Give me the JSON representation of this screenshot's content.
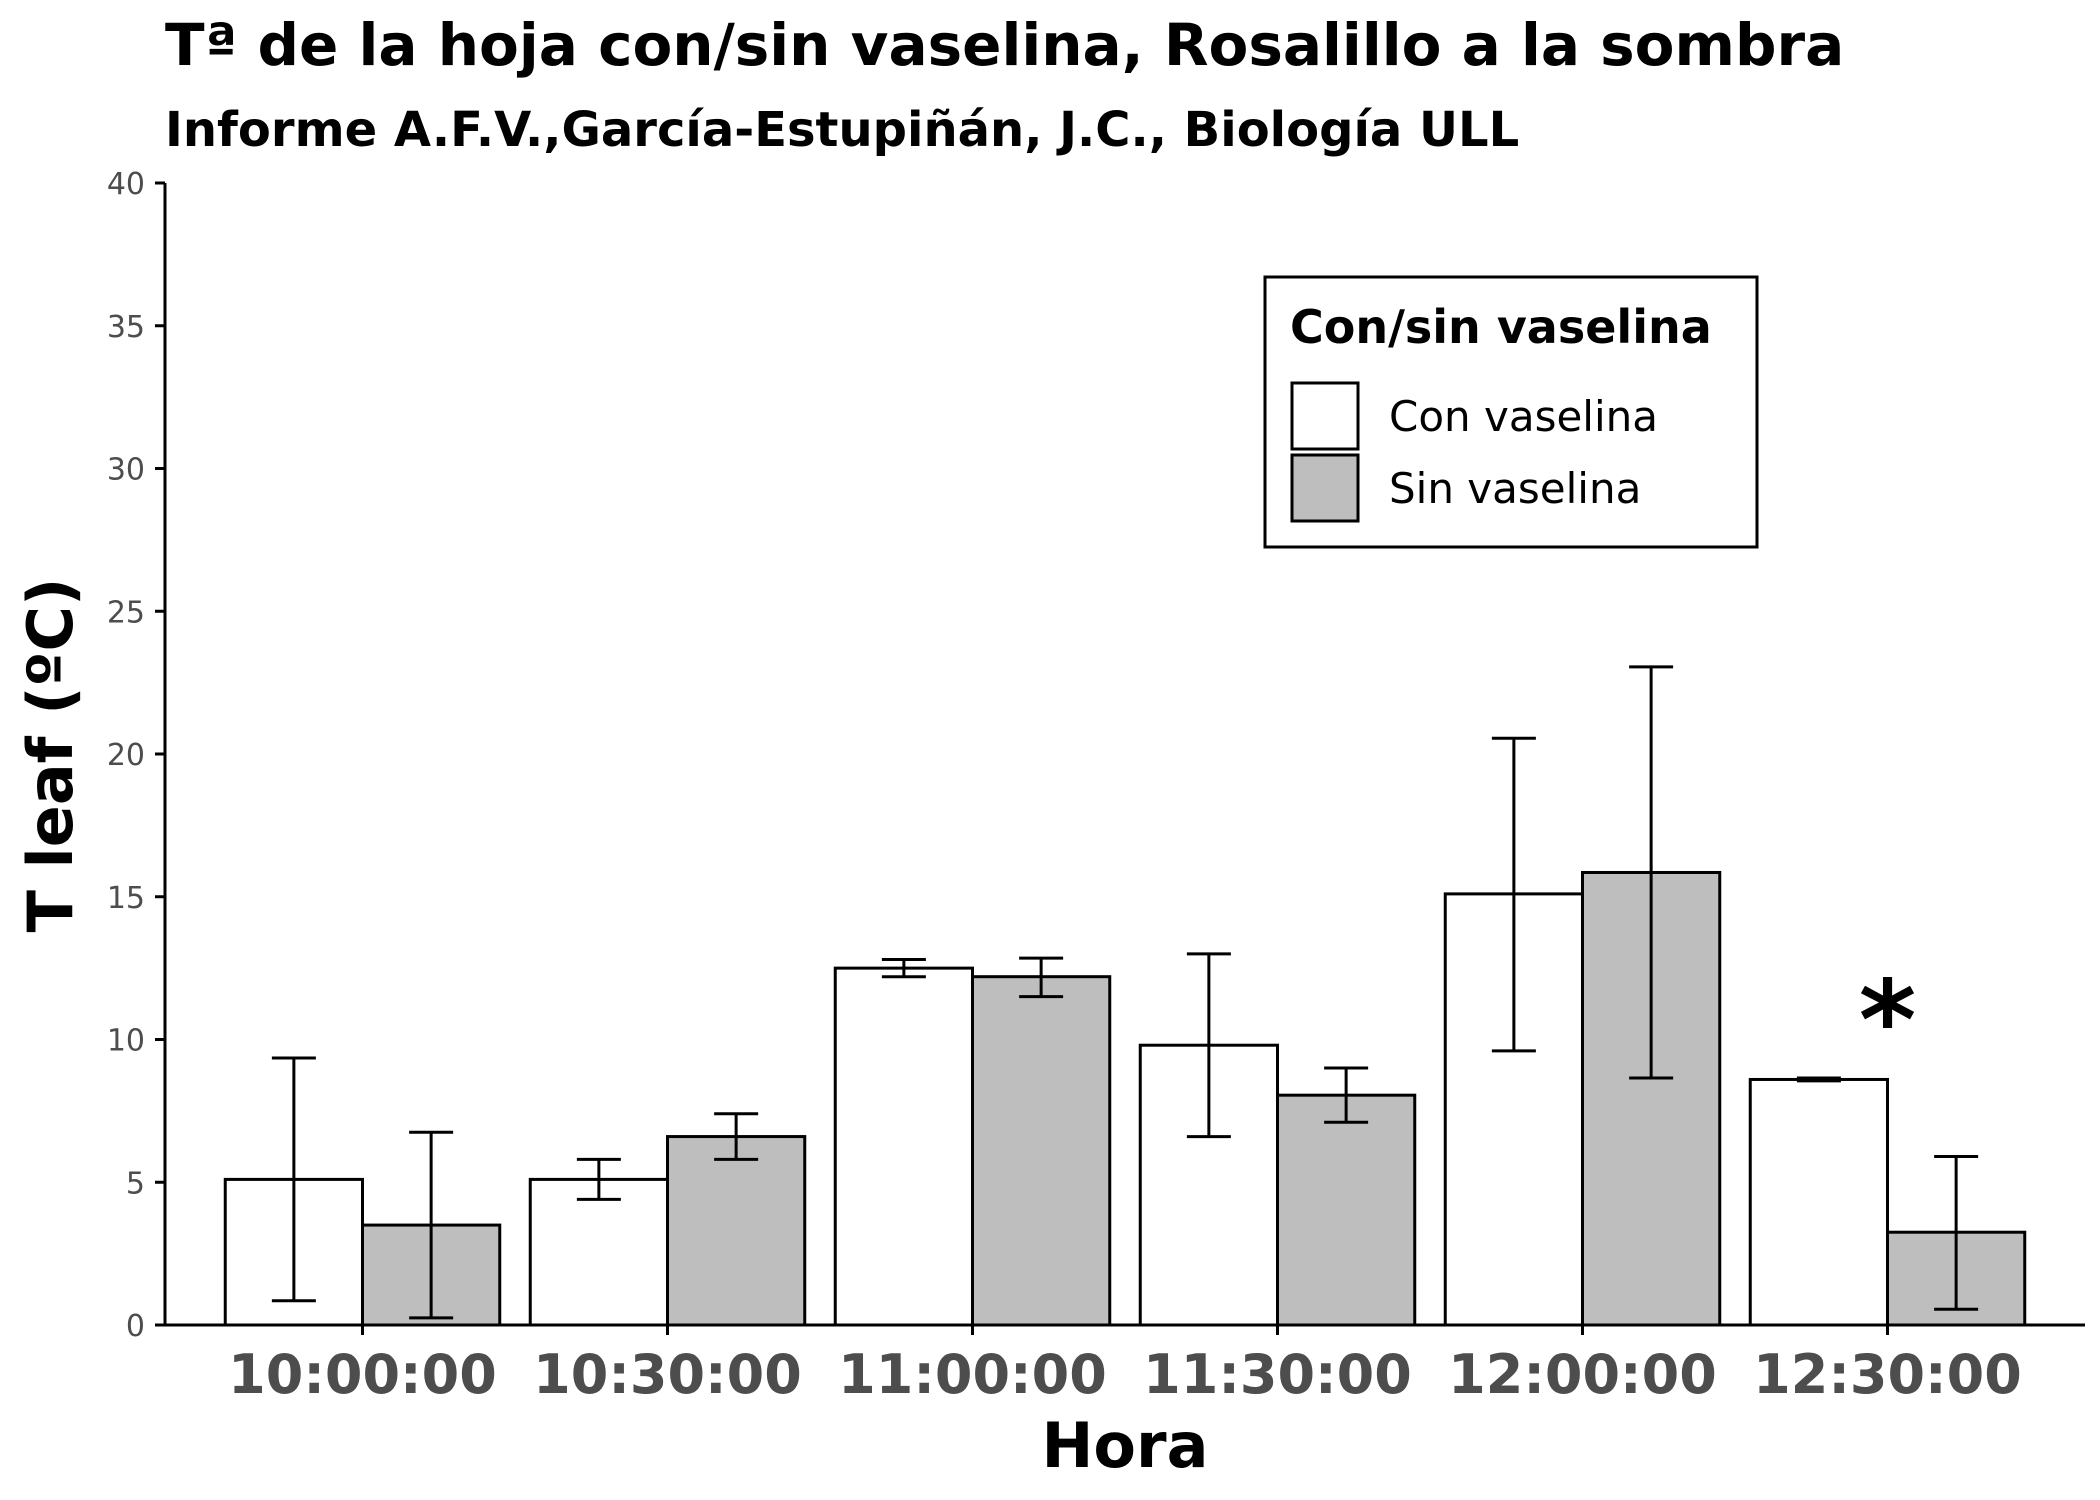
{
  "chart_data": {
    "type": "bar",
    "title": "Tª de la hoja con/sin vaselina, Rosalillo a la sombra",
    "subtitle": "Informe A.F.V.,García-Estupiñán, J.C., Biología ULL",
    "xlabel": "Hora",
    "ylabel": "T leaf (ºC)",
    "ylim": [
      0,
      40
    ],
    "yticks": [
      0,
      5,
      10,
      15,
      20,
      25,
      30,
      35,
      40
    ],
    "yticks_text": [
      "0",
      "5",
      "10",
      "15",
      "20",
      "25",
      "30",
      "35",
      "40"
    ],
    "grid": false,
    "legend_position": "top-right",
    "legend_title": "Con/sin vaselina",
    "categories": [
      "10:00:00",
      "10:30:00",
      "11:00:00",
      "11:30:00",
      "12:00:00",
      "12:30:00"
    ],
    "series": [
      {
        "name": "Con vaselina",
        "color": "#ffffff",
        "values": [
          5.1,
          5.1,
          12.5,
          9.8,
          15.1,
          8.6
        ],
        "err_low": [
          0.85,
          4.4,
          12.2,
          6.6,
          9.6,
          8.55
        ],
        "err_high": [
          9.35,
          5.8,
          12.8,
          13.0,
          20.55,
          8.65
        ]
      },
      {
        "name": "Sin vaselina",
        "color": "#bebebe",
        "values": [
          3.5,
          6.6,
          12.2,
          8.05,
          15.85,
          3.25
        ],
        "err_low": [
          0.25,
          5.8,
          11.5,
          7.1,
          8.65,
          0.55
        ],
        "err_high": [
          6.75,
          7.4,
          12.85,
          9.0,
          23.05,
          5.9
        ]
      }
    ],
    "annotations": [
      {
        "text": "*",
        "category": "12:30:00",
        "y": 11.5
      }
    ]
  }
}
